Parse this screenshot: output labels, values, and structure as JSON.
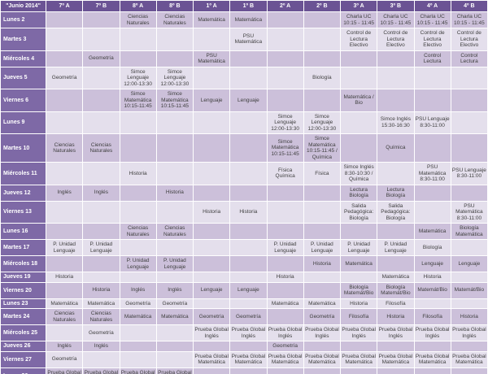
{
  "title": "\"Junio 2014\"",
  "columns": [
    "7º A",
    "7º B",
    "8º A",
    "8º B",
    "1º A",
    "1º B",
    "2º A",
    "2º B",
    "3º A",
    "3º B",
    "4º A",
    "4º B"
  ],
  "rows": [
    {
      "day": "Lunes 2",
      "cells": [
        "",
        "",
        "Ciencias Naturales",
        "Ciencias Naturales",
        "Matemática",
        "Matemática",
        "",
        "",
        "Charla UC 10:15 - 11:45",
        "Charla UC 10:15 - 11:45",
        "Charla UC 10:15 - 11:45",
        "Charla UC 10:15 - 11:45"
      ]
    },
    {
      "day": "Martes 3",
      "cells": [
        "",
        "",
        "",
        "",
        "",
        "PSU Matemática",
        "",
        "",
        "Control de Lectura Electivo",
        "Control de Lectura Electivo",
        "Control de Lectura Electivo",
        "Control de Lectura Electivo"
      ]
    },
    {
      "day": "Miércoles 4",
      "cells": [
        "",
        "Geometría",
        "",
        "",
        "PSU Matemática",
        "",
        "",
        "",
        "",
        "",
        "Control Lectura",
        "Control Lectura"
      ]
    },
    {
      "day": "Jueves 5",
      "cells": [
        "Geometría",
        "",
        "Simce Lenguaje 12:00-13:30",
        "Simce Lenguaje 12:00-13:30",
        "",
        "",
        "",
        "Biología",
        "",
        "",
        "",
        ""
      ]
    },
    {
      "day": "Viernes 6",
      "cells": [
        "",
        "",
        "Simce Matemática 10:15-11:45",
        "Simce Matemática 10:15-11:45",
        "Lenguaje",
        "Lenguaje",
        "",
        "",
        "Matemática / Bio",
        "",
        "",
        ""
      ]
    },
    {
      "day": "Lunes 9",
      "cells": [
        "",
        "",
        "",
        "",
        "",
        "",
        "Simce Lenguaje 12:00-13:30",
        "Simce Lenguaje 12:00-13:30",
        "",
        "Simce Inglés 15:30-16:30",
        "PSU Lenguaje 8:30-11:00",
        ""
      ]
    },
    {
      "day": "Martes 10",
      "cells": [
        "Ciencias Naturales",
        "Ciencias Naturales",
        "",
        "",
        "",
        "",
        "Simce Matemática 10:15-11:45",
        "Simce Matemática 10:15-11:45 / Química",
        "",
        "Química",
        "",
        ""
      ]
    },
    {
      "day": "Miércoles 11",
      "cells": [
        "",
        "",
        "Historia",
        "",
        "",
        "",
        "Física Química",
        "Física",
        "Simce Inglés 8:30-10:30 / Química",
        "",
        "PSU Matemática 8:30-11:00",
        "PSU Lenguaje 8:30-11:00"
      ]
    },
    {
      "day": "Jueves 12",
      "cells": [
        "Inglés",
        "Inglés",
        "",
        "Historia",
        "",
        "",
        "",
        "",
        "Lectura Biología",
        "Lectura Biología",
        "",
        ""
      ]
    },
    {
      "day": "Viernes 13",
      "cells": [
        "",
        "",
        "",
        "",
        "Historia",
        "Historia",
        "",
        "",
        "Salida Pedagógica: Biología",
        "Salida Pedagógica: Biología",
        "",
        "PSU Matemática 8:30-11:00"
      ]
    },
    {
      "day": "Lunes 16",
      "cells": [
        "",
        "",
        "Ciencias Naturales",
        "Ciencias Naturales",
        "",
        "",
        "",
        "",
        "",
        "",
        "Matemática",
        "Biología Matemática"
      ]
    },
    {
      "day": "Martes 17",
      "cells": [
        "P. Unidad Lenguaje",
        "P. Unidad Lenguaje",
        "",
        "",
        "",
        "",
        "P. Unidad Lenguaje",
        "P. Unidad Lenguaje",
        "P. Unidad Lenguaje",
        "P. Unidad Lenguaje",
        "Biología",
        ""
      ]
    },
    {
      "day": "Miércoles 18",
      "cells": [
        "",
        "",
        "P. Unidad Lenguaje",
        "P. Unidad Lenguaje",
        "",
        "",
        "",
        "Historia",
        "Matemática",
        "",
        "Lenguaje",
        "Lenguaje"
      ]
    },
    {
      "day": "Jueves 19",
      "cells": [
        "Historia",
        "",
        "",
        "",
        "",
        "",
        "Historia",
        "",
        "",
        "Matemática",
        "Historia",
        ""
      ]
    },
    {
      "day": "Viernes 20",
      "cells": [
        "",
        "Historia",
        "Inglés",
        "Inglés",
        "Lenguaje",
        "Lenguaje",
        "",
        "",
        "Biología Matemát/Bio",
        "Biología Matemát/Bio",
        "Matemát/Bio",
        "Matemát/Bio"
      ]
    },
    {
      "day": "Lunes 23",
      "cells": [
        "Matemática",
        "Matemática",
        "Geometría",
        "Geometría",
        "",
        "",
        "Matemática",
        "Matemática",
        "Historia",
        "Filosofía",
        "",
        ""
      ]
    },
    {
      "day": "Martes 24",
      "cells": [
        "Ciencias Naturales",
        "Ciencias Naturales",
        "Matemática",
        "Matemática",
        "Geometría",
        "Geometría",
        "",
        "Geometría",
        "Filosofía",
        "Historia",
        "Filosofía",
        "Historia"
      ]
    },
    {
      "day": "Miércoles 25",
      "cells": [
        "",
        "Geometría",
        "",
        "",
        "Prueba Global Inglés",
        "Prueba Global Inglés",
        "Prueba Global Inglés",
        "Prueba Global Inglés",
        "Prueba Global Inglés",
        "Prueba Global Inglés",
        "Prueba Global Inglés",
        "Prueba Global Inglés"
      ]
    },
    {
      "day": "Jueves 26",
      "cells": [
        "Inglés",
        "Inglés",
        "",
        "",
        "",
        "",
        "Geometría",
        "",
        "",
        "",
        "",
        ""
      ]
    },
    {
      "day": "Viernes 27",
      "cells": [
        "Geometría",
        "",
        "",
        "",
        "Prueba Global Matemática",
        "Prueba Global Matemática",
        "Prueba Global Matemática",
        "Prueba Global Matemática",
        "Prueba Global Matemática",
        "Prueba Global Matemática",
        "Prueba Global Matemática",
        "Prueba Global Matemática"
      ]
    },
    {
      "day": "Lunes 30",
      "cells": [
        "Prueba Global Lenguaje",
        "Prueba Global Lenguaje",
        "Prueba Global Lenguaje",
        "Prueba Global Lenguaje",
        "",
        "",
        "",
        "",
        "",
        "",
        "",
        ""
      ]
    }
  ],
  "colors": {
    "header_bg": "#6b5394",
    "day_bg": "#7e69a6",
    "row_dark": "#ccc0da",
    "row_light": "#e4dfec",
    "grid": "#ffffff",
    "cell_text": "#3f3f3f",
    "header_text": "#ffffff"
  }
}
